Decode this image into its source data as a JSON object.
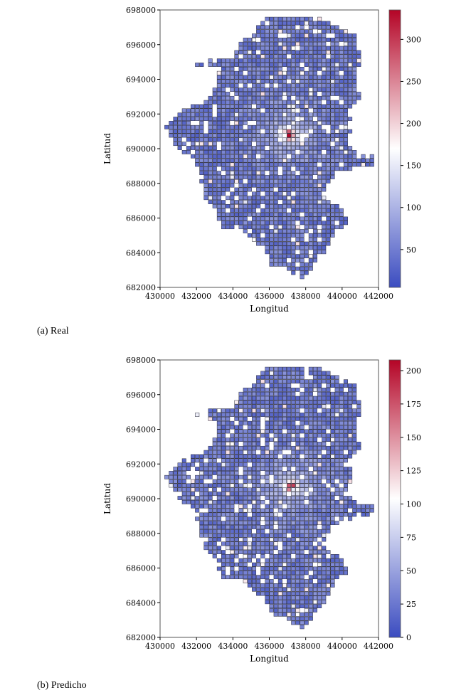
{
  "chart_data": [
    {
      "type": "heatmap",
      "caption": "(a) Real",
      "xlabel": "Longitud",
      "ylabel": "Latitud",
      "xlim": [
        430000,
        442000
      ],
      "ylim": [
        682000,
        698000
      ],
      "xticks": [
        "430000",
        "432000",
        "434000",
        "436000",
        "438000",
        "440000",
        "442000"
      ],
      "yticks": [
        "682000",
        "684000",
        "686000",
        "688000",
        "690000",
        "692000",
        "694000",
        "696000",
        "698000"
      ],
      "colorbar": {
        "range": [
          5,
          335
        ],
        "ticks": [
          "50",
          "100",
          "150",
          "200",
          "250",
          "300"
        ],
        "colors": [
          "#3b4cc0",
          "#ffffff",
          "#b40426"
        ]
      },
      "hotspot": {
        "x": 437100,
        "y": 690800,
        "value": 335
      }
    },
    {
      "type": "heatmap",
      "caption": "(b) Predicho",
      "xlabel": "Longitud",
      "ylabel": "Latitud",
      "xlim": [
        430000,
        442000
      ],
      "ylim": [
        682000,
        698000
      ],
      "xticks": [
        "430000",
        "432000",
        "434000",
        "436000",
        "438000",
        "440000",
        "442000"
      ],
      "yticks": [
        "682000",
        "684000",
        "686000",
        "688000",
        "690000",
        "692000",
        "694000",
        "696000",
        "698000"
      ],
      "colorbar": {
        "range": [
          0,
          208
        ],
        "ticks": [
          "0",
          "25",
          "50",
          "75",
          "100",
          "125",
          "150",
          "175",
          "200"
        ],
        "colors": [
          "#3b4cc0",
          "#ffffff",
          "#b40426"
        ]
      },
      "hotspot": {
        "x": 437200,
        "y": 690700,
        "value": 208
      }
    }
  ]
}
